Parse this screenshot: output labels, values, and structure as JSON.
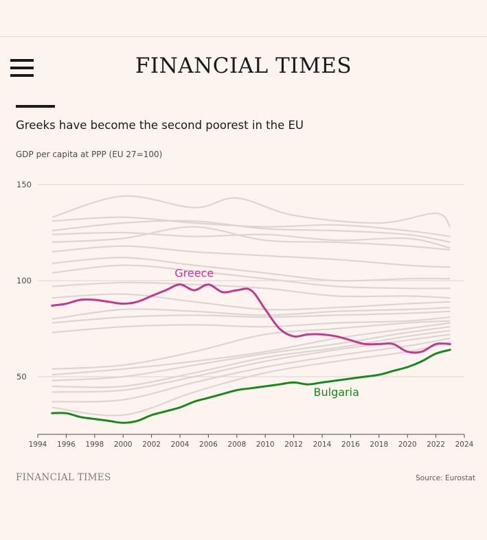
{
  "header": {
    "masthead": "FINANCIAL TIMES",
    "menu_icon": "hamburger-menu-icon"
  },
  "headline": "Greeks have become the second poorest in the EU",
  "subtitle": "GDP per capita at PPP (EU 27=100)",
  "footer": {
    "brand": "FINANCIAL TIMES",
    "source": "Source: Eurostat"
  },
  "colors": {
    "background": "#fdf3ef",
    "greece": "#c4378f",
    "bulgaria": "#148a1a",
    "others": "#ddd5d2",
    "gridline": "#ddd5d2"
  },
  "chart_data": {
    "type": "line",
    "ylim": [
      20,
      150
    ],
    "xlim": [
      1994,
      2024
    ],
    "y_ticks": [
      50,
      100,
      150
    ],
    "x_ticks": [
      "1994",
      "1996",
      "1998",
      "2000",
      "2002",
      "2004",
      "2006",
      "2008",
      "2010",
      "2012",
      "2014",
      "2016",
      "2018",
      "2020",
      "2022",
      "2024"
    ],
    "grid": true,
    "highlighted_series": [
      {
        "name": "Greece",
        "color": "#c4378f",
        "label_position": [
          2005.0,
          102
        ],
        "points": [
          [
            1995,
            87
          ],
          [
            1996,
            88
          ],
          [
            1997,
            90
          ],
          [
            1998,
            90
          ],
          [
            1999,
            89
          ],
          [
            2000,
            88
          ],
          [
            2001,
            89
          ],
          [
            2002,
            92
          ],
          [
            2003,
            95
          ],
          [
            2004,
            98
          ],
          [
            2005,
            95
          ],
          [
            2006,
            98
          ],
          [
            2007,
            94
          ],
          [
            2008,
            95
          ],
          [
            2009,
            95
          ],
          [
            2010,
            85
          ],
          [
            2011,
            75
          ],
          [
            2012,
            71
          ],
          [
            2013,
            72
          ],
          [
            2014,
            72
          ],
          [
            2015,
            71
          ],
          [
            2016,
            69
          ],
          [
            2017,
            67
          ],
          [
            2018,
            67
          ],
          [
            2019,
            67
          ],
          [
            2020,
            63
          ],
          [
            2021,
            63
          ],
          [
            2022,
            67
          ],
          [
            2023,
            67
          ]
        ]
      },
      {
        "name": "Bulgaria",
        "color": "#148a1a",
        "label_position": [
          2015.0,
          40
        ],
        "points": [
          [
            1995,
            31
          ],
          [
            1996,
            31
          ],
          [
            1997,
            29
          ],
          [
            1998,
            28
          ],
          [
            1999,
            27
          ],
          [
            2000,
            26
          ],
          [
            2001,
            27
          ],
          [
            2002,
            30
          ],
          [
            2003,
            32
          ],
          [
            2004,
            34
          ],
          [
            2005,
            37
          ],
          [
            2006,
            39
          ],
          [
            2007,
            41
          ],
          [
            2008,
            43
          ],
          [
            2009,
            44
          ],
          [
            2010,
            45
          ],
          [
            2011,
            46
          ],
          [
            2012,
            47
          ],
          [
            2013,
            46
          ],
          [
            2014,
            47
          ],
          [
            2015,
            48
          ],
          [
            2016,
            49
          ],
          [
            2017,
            50
          ],
          [
            2018,
            51
          ],
          [
            2019,
            53
          ],
          [
            2020,
            55
          ],
          [
            2021,
            58
          ],
          [
            2022,
            62
          ],
          [
            2023,
            64
          ]
        ]
      }
    ],
    "background_series": [
      [
        [
          1995,
          133
        ],
        [
          2000,
          144
        ],
        [
          2005,
          138
        ],
        [
          2008,
          143
        ],
        [
          2012,
          134
        ],
        [
          2018,
          130
        ],
        [
          2022,
          135
        ],
        [
          2023,
          128
        ]
      ],
      [
        [
          1995,
          131
        ],
        [
          2000,
          133
        ],
        [
          2005,
          130
        ],
        [
          2010,
          128
        ],
        [
          2015,
          129
        ],
        [
          2020,
          126
        ],
        [
          2023,
          123
        ]
      ],
      [
        [
          1995,
          126
        ],
        [
          2000,
          130
        ],
        [
          2005,
          131
        ],
        [
          2010,
          127
        ],
        [
          2015,
          126
        ],
        [
          2020,
          124
        ],
        [
          2023,
          120
        ]
      ],
      [
        [
          1995,
          124
        ],
        [
          2000,
          125
        ],
        [
          2005,
          123
        ],
        [
          2010,
          124
        ],
        [
          2015,
          121
        ],
        [
          2020,
          122
        ],
        [
          2023,
          117
        ]
      ],
      [
        [
          1995,
          120
        ],
        [
          2000,
          122
        ],
        [
          2005,
          128
        ],
        [
          2010,
          121
        ],
        [
          2015,
          120
        ],
        [
          2020,
          118
        ],
        [
          2023,
          116
        ]
      ],
      [
        [
          1995,
          115
        ],
        [
          2000,
          118
        ],
        [
          2005,
          115
        ],
        [
          2010,
          113
        ],
        [
          2015,
          111
        ],
        [
          2020,
          108
        ],
        [
          2023,
          107
        ]
      ],
      [
        [
          1995,
          109
        ],
        [
          2000,
          112
        ],
        [
          2005,
          108
        ],
        [
          2010,
          104
        ],
        [
          2015,
          100
        ],
        [
          2020,
          101
        ],
        [
          2023,
          101
        ]
      ],
      [
        [
          1995,
          104
        ],
        [
          2000,
          108
        ],
        [
          2005,
          105
        ],
        [
          2010,
          101
        ],
        [
          2015,
          97
        ],
        [
          2020,
          96
        ],
        [
          2023,
          96
        ]
      ],
      [
        [
          1995,
          97
        ],
        [
          2000,
          99
        ],
        [
          2005,
          98
        ],
        [
          2010,
          96
        ],
        [
          2015,
          92
        ],
        [
          2020,
          92
        ],
        [
          2023,
          91
        ]
      ],
      [
        [
          1995,
          91
        ],
        [
          2000,
          93
        ],
        [
          2005,
          89
        ],
        [
          2010,
          85
        ],
        [
          2015,
          86
        ],
        [
          2020,
          88
        ],
        [
          2023,
          89
        ]
      ],
      [
        [
          1995,
          80
        ],
        [
          2000,
          85
        ],
        [
          2005,
          84
        ],
        [
          2010,
          82
        ],
        [
          2015,
          84
        ],
        [
          2020,
          85
        ],
        [
          2023,
          86
        ]
      ],
      [
        [
          1995,
          78
        ],
        [
          2000,
          81
        ],
        [
          2005,
          82
        ],
        [
          2010,
          81
        ],
        [
          2015,
          82
        ],
        [
          2020,
          83
        ],
        [
          2023,
          84
        ]
      ],
      [
        [
          1995,
          73
        ],
        [
          2000,
          76
        ],
        [
          2005,
          77
        ],
        [
          2010,
          76
        ],
        [
          2015,
          78
        ],
        [
          2020,
          79
        ],
        [
          2023,
          81
        ]
      ],
      [
        [
          1995,
          54
        ],
        [
          2000,
          56
        ],
        [
          2005,
          63
        ],
        [
          2010,
          72
        ],
        [
          2015,
          75
        ],
        [
          2020,
          78
        ],
        [
          2023,
          79
        ]
      ],
      [
        [
          1995,
          51
        ],
        [
          2000,
          54
        ],
        [
          2005,
          58
        ],
        [
          2010,
          63
        ],
        [
          2015,
          70
        ],
        [
          2020,
          75
        ],
        [
          2023,
          78
        ]
      ],
      [
        [
          1995,
          48
        ],
        [
          2000,
          50
        ],
        [
          2005,
          56
        ],
        [
          2010,
          62
        ],
        [
          2015,
          67
        ],
        [
          2020,
          73
        ],
        [
          2023,
          76
        ]
      ],
      [
        [
          1995,
          45
        ],
        [
          2000,
          45
        ],
        [
          2005,
          52
        ],
        [
          2010,
          60
        ],
        [
          2015,
          65
        ],
        [
          2020,
          71
        ],
        [
          2023,
          74
        ]
      ],
      [
        [
          1995,
          42
        ],
        [
          2000,
          43
        ],
        [
          2005,
          50
        ],
        [
          2010,
          58
        ],
        [
          2015,
          64
        ],
        [
          2020,
          69
        ],
        [
          2023,
          72
        ]
      ],
      [
        [
          1995,
          37
        ],
        [
          2000,
          38
        ],
        [
          2005,
          47
        ],
        [
          2010,
          55
        ],
        [
          2015,
          61
        ],
        [
          2020,
          66
        ],
        [
          2023,
          70
        ]
      ],
      [
        [
          1995,
          34
        ],
        [
          2000,
          30
        ],
        [
          2005,
          42
        ],
        [
          2010,
          52
        ],
        [
          2015,
          58
        ],
        [
          2020,
          63
        ],
        [
          2023,
          68
        ]
      ]
    ]
  }
}
